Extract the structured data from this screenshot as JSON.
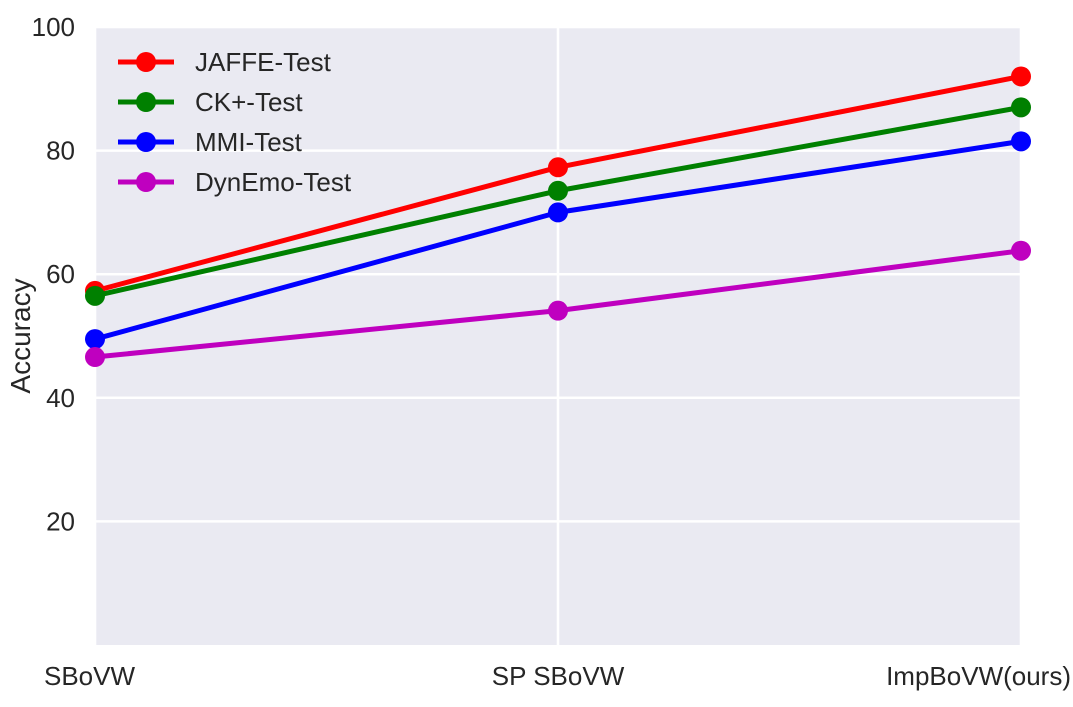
{
  "chart_data": {
    "type": "line",
    "title": "",
    "xlabel": "",
    "ylabel": "Accuracy",
    "categories": [
      "SBoVW",
      "SP SBoVW",
      "ImpBoVW(ours)"
    ],
    "ylim": [
      0,
      100
    ],
    "yticks": [
      20,
      40,
      60,
      80,
      100
    ],
    "grid": true,
    "legend_position": "top-left",
    "background_color": "#eaeaf2",
    "grid_color": "#ffffff",
    "series": [
      {
        "name": "JAFFE-Test",
        "color": "#ff0000",
        "values": [
          57.3,
          77.3,
          92.0
        ]
      },
      {
        "name": "CK+-Test",
        "color": "#008000",
        "values": [
          56.5,
          73.5,
          87.0
        ]
      },
      {
        "name": "MMI-Test",
        "color": "#0000ff",
        "values": [
          49.5,
          70.0,
          81.5
        ]
      },
      {
        "name": "DynEmo-Test",
        "color": "#bf00bf",
        "values": [
          46.6,
          54.1,
          63.8
        ]
      }
    ]
  }
}
